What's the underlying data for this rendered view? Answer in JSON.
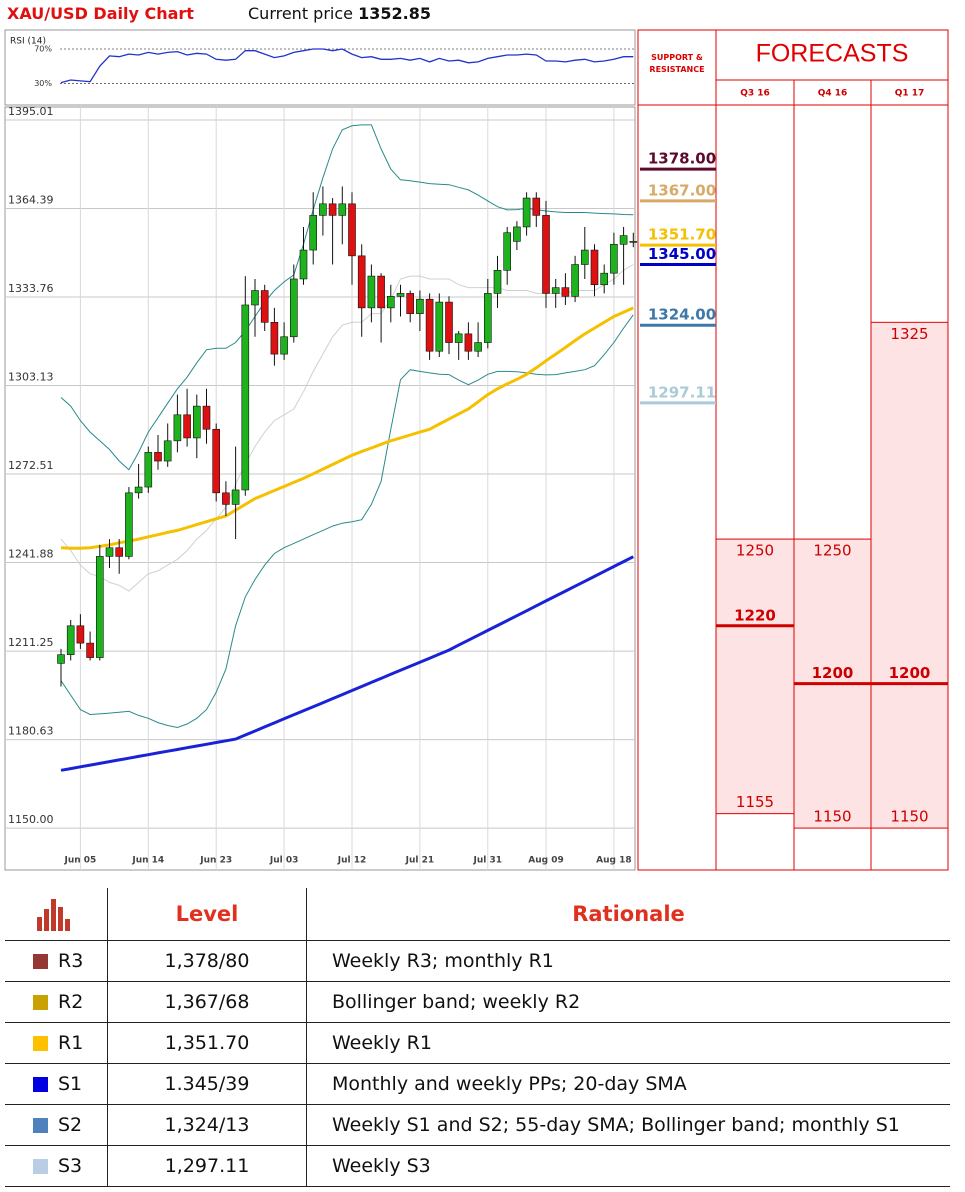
{
  "title": "XAU/USD Daily Chart",
  "current_price": {
    "label": "Current price",
    "value": 1352.85
  },
  "chart_data": [
    {
      "type": "candlestick",
      "categories": [
        null,
        null,
        "Jun 05",
        null,
        null,
        null,
        null,
        null,
        null,
        "Jun 14",
        null,
        null,
        null,
        null,
        null,
        null,
        "Jun 23",
        null,
        null,
        null,
        null,
        null,
        null,
        "Jul 03",
        null,
        null,
        null,
        null,
        null,
        null,
        "Jul 12",
        null,
        null,
        null,
        null,
        null,
        null,
        "Jul 21",
        null,
        null,
        null,
        null,
        null,
        null,
        "Jul 31",
        null,
        null,
        null,
        null,
        null,
        "Aug 09",
        null,
        null,
        null,
        null,
        null,
        null,
        "Aug 18",
        null,
        null
      ],
      "open": [
        1207,
        1210,
        1220,
        1214,
        1209,
        1244,
        1247,
        1244,
        1266,
        1268,
        1280,
        1277,
        1284,
        1293,
        1285,
        1296,
        1288,
        1266,
        1262,
        1267,
        1331,
        1336,
        1325,
        1314,
        1320,
        1340,
        1350,
        1362,
        1366,
        1362,
        1366,
        1348,
        1330,
        1341,
        1330,
        1334,
        1335,
        1328,
        1333,
        1315,
        1332,
        1318,
        1321,
        1315,
        1318,
        1335,
        1343,
        1353,
        1358,
        1368,
        1362,
        1335,
        1337,
        1334,
        1345,
        1350,
        1338,
        1342,
        1352,
        1353
      ],
      "high": [
        1212,
        1222,
        1224,
        1218,
        1248,
        1250,
        1250,
        1268,
        1276,
        1282,
        1286,
        1290,
        1300,
        1302,
        1300,
        1302,
        1290,
        1270,
        1282,
        1341,
        1340,
        1338,
        1330,
        1325,
        1345,
        1358,
        1370,
        1372,
        1368,
        1372,
        1370,
        1352,
        1345,
        1342,
        1338,
        1338,
        1336,
        1336,
        1335,
        1335,
        1334,
        1322,
        1325,
        1325,
        1340,
        1348,
        1358,
        1360,
        1370,
        1370,
        1367,
        1340,
        1342,
        1348,
        1358,
        1352,
        1345,
        1356,
        1358,
        1356
      ],
      "low": [
        1199,
        1208,
        1212,
        1208,
        1208,
        1240,
        1238,
        1243,
        1264,
        1266,
        1274,
        1275,
        1280,
        1282,
        1278,
        1283,
        1263,
        1258,
        1250,
        1265,
        1320,
        1322,
        1310,
        1312,
        1318,
        1338,
        1345,
        1355,
        1345,
        1352,
        1338,
        1320,
        1325,
        1318,
        1325,
        1327,
        1325,
        1322,
        1312,
        1313,
        1314,
        1312,
        1312,
        1313,
        1316,
        1330,
        1338,
        1350,
        1355,
        1358,
        1330,
        1330,
        1331,
        1332,
        1340,
        1334,
        1335,
        1338,
        1338,
        1351
      ],
      "close": [
        1210,
        1220,
        1214,
        1209,
        1244,
        1247,
        1244,
        1266,
        1268,
        1280,
        1277,
        1284,
        1293,
        1285,
        1296,
        1288,
        1266,
        1262,
        1267,
        1331,
        1336,
        1325,
        1314,
        1320,
        1340,
        1350,
        1362,
        1366,
        1362,
        1366,
        1348,
        1330,
        1341,
        1330,
        1334,
        1335,
        1328,
        1333,
        1315,
        1332,
        1318,
        1321,
        1315,
        1318,
        1335,
        1343,
        1356,
        1358,
        1368,
        1362,
        1335,
        1337,
        1334,
        1345,
        1350,
        1338,
        1342,
        1352,
        1355,
        1353
      ],
      "up_color": "#1fb21f",
      "down_color": "#dd1111",
      "lines": [
        {
          "color": "#d0d0d0",
          "width": 1,
          "values": [
            1250,
            1246,
            1241,
            1238,
            1237,
            1235,
            1234,
            1232,
            1235,
            1238,
            1239,
            1241,
            1243,
            1246,
            1250,
            1253,
            1257,
            1261,
            1269,
            1276,
            1282,
            1287,
            1291,
            1293,
            1295,
            1301,
            1308,
            1314,
            1320,
            1324,
            1325,
            1325,
            1328,
            1328,
            1333,
            1340,
            1341,
            1341,
            1340,
            1340,
            1340,
            1338,
            1337,
            1337,
            1337,
            1337,
            1336,
            1336,
            1336,
            1335,
            1335,
            1335,
            1335,
            1336,
            1336,
            1336,
            1338,
            1340,
            1343,
            1345
          ]
        },
        {
          "color": "#2a8a8a",
          "width": 1,
          "values": [
            1299,
            1296,
            1291,
            1287,
            1284,
            1281,
            1277,
            1274,
            1280,
            1287,
            1292,
            1297,
            1302,
            1306,
            1311,
            1315.5,
            1316,
            1316,
            1318,
            1322,
            1327,
            1332,
            1336,
            1339,
            1341.4,
            1352,
            1364,
            1375,
            1385,
            1391.6,
            1393,
            1393.3,
            1393.3,
            1385,
            1378,
            1374.3,
            1374,
            1373.5,
            1373,
            1372.8,
            1372.6,
            1371.7,
            1370.8,
            1369,
            1367,
            1365,
            1363.9,
            1364,
            1364.5,
            1364,
            1363.5,
            1363.2,
            1363,
            1363,
            1363,
            1362.8,
            1362.6,
            1362.5,
            1362.3,
            1362.2
          ]
        },
        {
          "color": "#2a8a8a",
          "width": 1,
          "values": [
            1201,
            1196,
            1191,
            1189.3,
            1189.5,
            1189.8,
            1190.1,
            1190.4,
            1189,
            1188,
            1186.5,
            1185.5,
            1184.8,
            1186,
            1188,
            1191,
            1197,
            1205,
            1220,
            1230,
            1236,
            1241,
            1245,
            1247,
            1248.5,
            1250,
            1251.5,
            1253,
            1254.5,
            1255.5,
            1256,
            1256.7,
            1262,
            1270,
            1288,
            1305.1,
            1308.6,
            1308,
            1307.5,
            1307,
            1306.9,
            1305,
            1303.4,
            1305,
            1307,
            1308,
            1308,
            1307.9,
            1307.5,
            1307,
            1306.8,
            1306.9,
            1307.5,
            1308,
            1308.6,
            1310,
            1313.8,
            1318,
            1323,
            1327.6
          ]
        },
        {
          "color": "#f5c000",
          "width": 3,
          "values": [
            1247,
            1246.8,
            1246.8,
            1247,
            1247.5,
            1248,
            1248.7,
            1249.3,
            1250,
            1250.8,
            1251.5,
            1252.3,
            1253,
            1254,
            1255,
            1256,
            1257,
            1258,
            1260,
            1262,
            1264,
            1265.4,
            1266.8,
            1268.2,
            1269.6,
            1271,
            1272.6,
            1274.2,
            1275.8,
            1277.4,
            1279,
            1280.3,
            1281.5,
            1282.8,
            1284,
            1285,
            1286,
            1287,
            1288,
            1289.8,
            1291.5,
            1293.3,
            1295,
            1297.5,
            1300,
            1302,
            1303.7,
            1305.3,
            1307,
            1309.3,
            1311.7,
            1314,
            1316.3,
            1318.7,
            1321,
            1323,
            1325,
            1327,
            1328.5,
            1330
          ]
        },
        {
          "color": "#1a22d8",
          "width": 3,
          "values": [
            1170.0,
            1170.6,
            1171.2,
            1171.8,
            1172.4,
            1173.0,
            1173.6,
            1174.2,
            1174.8,
            1175.4,
            1176.0,
            1176.6,
            1177.2,
            1177.8,
            1178.4,
            1179.0,
            1179.6,
            1180.2,
            1180.8,
            1182.2,
            1183.6,
            1185.0,
            1186.4,
            1187.8,
            1189.2,
            1190.6,
            1192.0,
            1193.4,
            1194.8,
            1196.2,
            1197.6,
            1199.0,
            1200.4,
            1201.8,
            1203.2,
            1204.6,
            1206.0,
            1207.4,
            1208.8,
            1210.2,
            1211.6,
            1213.3,
            1215.0,
            1216.7,
            1218.4,
            1220.1,
            1221.8,
            1223.5,
            1225.2,
            1226.9,
            1228.6,
            1230.3,
            1232.0,
            1233.7,
            1235.4,
            1237.1,
            1238.8,
            1240.5,
            1242.2,
            1243.9
          ]
        }
      ],
      "ylim": [
        1135.5,
        1399.5
      ],
      "yticks": [
        1395.01,
        1364.39,
        1333.76,
        1303.13,
        1272.51,
        1241.88,
        1211.25,
        1180.63,
        {
          "value": 1150,
          "label": "1150.00"
        }
      ],
      "grid": true
    },
    {
      "type": "line",
      "title": "RSI (14)",
      "color": "#2233cc",
      "values": [
        31,
        34,
        33,
        32,
        50,
        62,
        61,
        64,
        63,
        66,
        64,
        66,
        67,
        63,
        65,
        64,
        58,
        57,
        58,
        68,
        68,
        64,
        60,
        62,
        66,
        68,
        70,
        70,
        68,
        70,
        64,
        60,
        61,
        58,
        58,
        59,
        57,
        59,
        55,
        59,
        56,
        57,
        54,
        55,
        59,
        61,
        63,
        63,
        64,
        63,
        56,
        56,
        55,
        57,
        58,
        55,
        56,
        58,
        61,
        61
      ],
      "ylim": [
        5,
        92
      ],
      "yticks": [
        {
          "value": 70,
          "label": "70%"
        },
        {
          "value": 30,
          "label": "30%"
        }
      ]
    }
  ],
  "levels_panel": {
    "title": "SUPPORT & RESISTANCE",
    "values": [
      1378,
      1367,
      1351.7,
      1345,
      1324,
      1297.11
    ],
    "value_labels": [
      "1378.00",
      "1367.00",
      "1351.70",
      "1345.00",
      "1324.00",
      "1297.11"
    ],
    "colors": [
      "#5c0a2e",
      "#d8aa66",
      "#f5c000",
      "#0000c8",
      "#3d78a8",
      "#a9cbd8"
    ]
  },
  "forecasts": {
    "title": "FORECASTS",
    "columns": [
      {
        "label": "Q3 16",
        "high": 1250,
        "mid": 1220,
        "low": 1155
      },
      {
        "label": "Q4 16",
        "high": 1250,
        "mid": 1200,
        "low": 1150
      },
      {
        "label": "Q1 17",
        "high": 1325,
        "mid": 1200,
        "low": 1150
      }
    ]
  },
  "table": {
    "header": [
      "Level",
      "Rationale"
    ],
    "rows": [
      {
        "code": "R3",
        "color": "#953735",
        "level": "1,378/80",
        "rationale": "Weekly R3; monthly R1"
      },
      {
        "code": "R2",
        "color": "#c9a100",
        "level": "1,367/68",
        "rationale": "Bollinger band; weekly R2"
      },
      {
        "code": "R1",
        "color": "#ffc000",
        "level": "1,351.70",
        "rationale": "Weekly R1"
      },
      {
        "code": "S1",
        "color": "#0000e0",
        "level": "1.345/39",
        "rationale": "Monthly and weekly PPs; 20-day SMA"
      },
      {
        "code": "S2",
        "color": "#4f81bd",
        "level": "1,324/13",
        "rationale": "Weekly S1 and S2; 55-day SMA; Bollinger band; monthly S1"
      },
      {
        "code": "S3",
        "color": "#b9cde5",
        "level": "1,297.11",
        "rationale": "Weekly S3"
      }
    ]
  }
}
